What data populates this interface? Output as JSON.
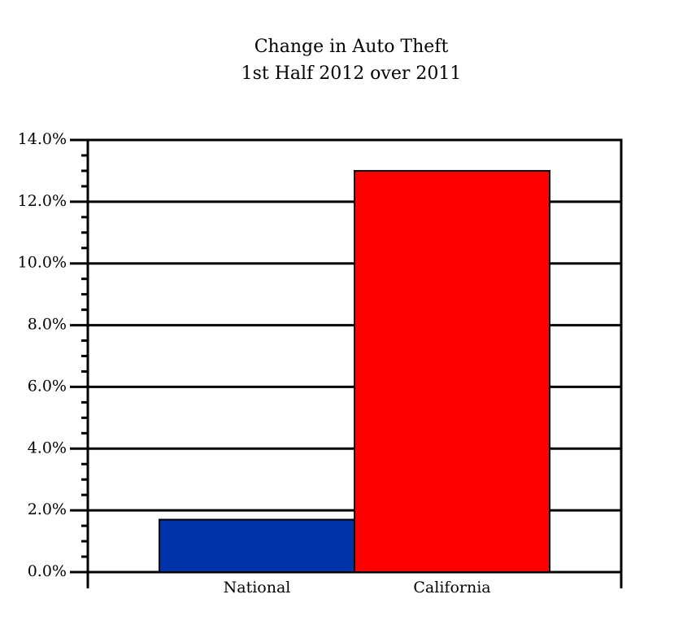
{
  "chart_data": {
    "type": "bar",
    "title": "Change in Auto Theft",
    "subtitle": "1st Half 2012 over 2011",
    "categories": [
      "National",
      "California"
    ],
    "values": [
      1.7,
      13.0
    ],
    "colors": [
      "#0033aa",
      "#ff0000"
    ],
    "ylim": [
      0,
      14
    ],
    "yticks": [
      {
        "value": 0,
        "label": "0.0%"
      },
      {
        "value": 2,
        "label": "2.0%"
      },
      {
        "value": 4,
        "label": "4.0%"
      },
      {
        "value": 6,
        "label": "6.0%"
      },
      {
        "value": 8,
        "label": "8.0%"
      },
      {
        "value": 10,
        "label": "10.0%"
      },
      {
        "value": 12,
        "label": "12.0%"
      },
      {
        "value": 14,
        "label": "14.0%"
      }
    ],
    "grid": true
  }
}
